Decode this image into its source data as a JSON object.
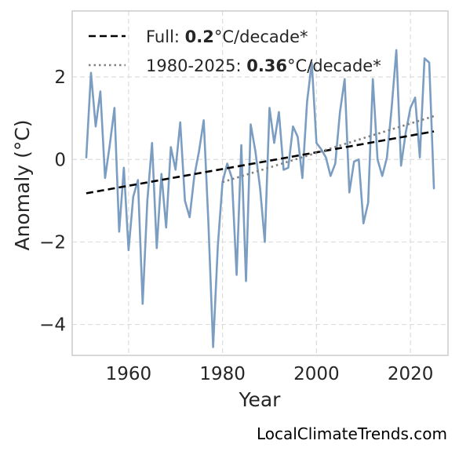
{
  "chart_data": {
    "type": "line",
    "xlabel": "Year",
    "ylabel": "Anomaly (°C)",
    "xlim": [
      1948,
      2028
    ],
    "ylim": [
      -4.75,
      3.6
    ],
    "xticks": [
      1960,
      1980,
      2000,
      2020
    ],
    "yticks": [
      2,
      0,
      -2,
      -4
    ],
    "ytick_labels": [
      "2",
      "0",
      "−2",
      "−4"
    ],
    "grid": true,
    "legend_position": "top-left",
    "series": [
      {
        "x": [
          1951,
          1952,
          1953,
          1954,
          1955,
          1956,
          1957,
          1958,
          1959,
          1960,
          1961,
          1962,
          1963,
          1964,
          1965,
          1966,
          1967,
          1968,
          1969,
          1970,
          1971,
          1972,
          1973,
          1974,
          1975,
          1976,
          1977,
          1978,
          1979,
          1980,
          1981,
          1982,
          1983,
          1984,
          1985,
          1986,
          1987,
          1988,
          1989,
          1990,
          1991,
          1992,
          1993,
          1994,
          1995,
          1996,
          1997,
          1998,
          1999,
          2000,
          2001,
          2002,
          2003,
          2004,
          2005,
          2006,
          2007,
          2008,
          2009,
          2010,
          2011,
          2012,
          2013,
          2014,
          2015,
          2016,
          2017,
          2018,
          2019,
          2020,
          2021,
          2022,
          2023,
          2024,
          2025
        ],
        "y": [
          0.05,
          2.1,
          0.8,
          1.65,
          -0.45,
          0.35,
          1.25,
          -1.75,
          -0.2,
          -2.2,
          -0.9,
          -0.5,
          -3.5,
          -1.0,
          0.4,
          -2.15,
          -0.35,
          -1.65,
          0.3,
          -0.25,
          0.9,
          -1.0,
          -1.4,
          -0.4,
          0.2,
          0.95,
          -1.55,
          -4.55,
          -2.1,
          -0.55,
          -0.1,
          -0.45,
          -2.8,
          0.35,
          -2.95,
          0.85,
          0.2,
          -0.7,
          -2.0,
          1.25,
          0.4,
          1.15,
          -0.25,
          -0.2,
          0.8,
          0.55,
          -0.45,
          1.4,
          2.35,
          0.4,
          0.25,
          0.05,
          -0.4,
          -0.1,
          1.15,
          1.95,
          -0.8,
          -0.05,
          0.0,
          -1.55,
          -1.05,
          1.95,
          0.0,
          -0.4,
          0.05,
          1.25,
          2.65,
          -0.15,
          0.65,
          1.25,
          1.5,
          0.05,
          2.45,
          2.35,
          -0.7
        ],
        "color": "#7b9dc1"
      },
      {
        "name": "Full: 0.2°C/decade*",
        "x": [
          1951,
          2025
        ],
        "y": [
          -0.82,
          0.68
        ],
        "color": "#000000",
        "style": "dashed"
      },
      {
        "name": "1980-2025: 0.36°C/decade*",
        "x": [
          1980,
          2025
        ],
        "y": [
          -0.55,
          1.05
        ],
        "color": "#808080",
        "style": "dotted"
      }
    ],
    "legend": [
      {
        "prefix": "Full: ",
        "value": "0.2",
        "suffix": "°C/decade*"
      },
      {
        "prefix": "1980-2025: ",
        "value": "0.36",
        "suffix": "°C/decade*"
      }
    ]
  },
  "credit": "LocalClimateTrends.com"
}
